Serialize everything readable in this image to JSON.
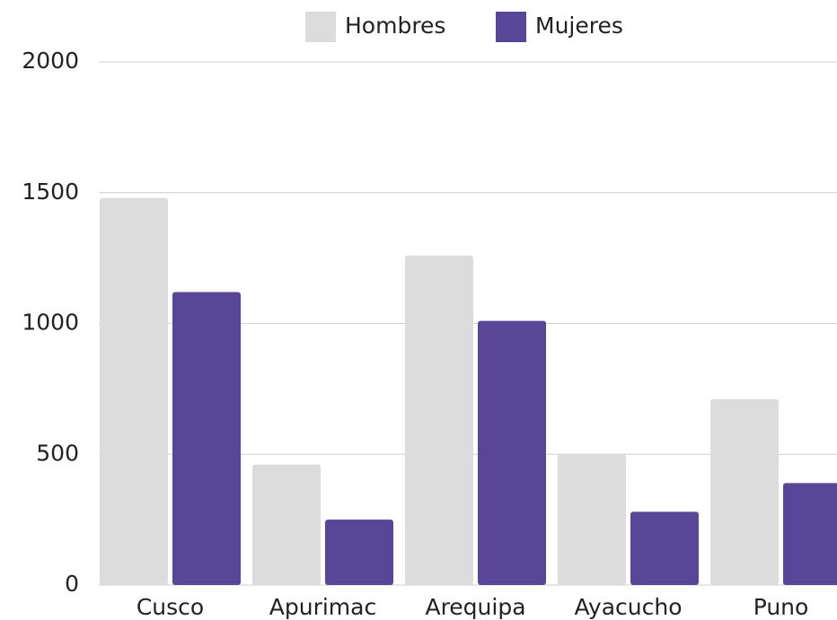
{
  "chart_data": {
    "type": "bar",
    "categories": [
      "Cusco",
      "Apurimac",
      "Arequipa",
      "Ayacucho",
      "Puno"
    ],
    "series": [
      {
        "name": "Hombres",
        "color": "#dcdcdc",
        "values": [
          1480,
          460,
          1260,
          500,
          710
        ]
      },
      {
        "name": "Mujeres",
        "color": "#584697",
        "values": [
          1120,
          250,
          1010,
          280,
          390
        ]
      }
    ],
    "ylim": [
      0,
      2000
    ],
    "yticks": [
      0,
      500,
      1000,
      1500,
      2000
    ],
    "grid": true,
    "legend": "top"
  }
}
